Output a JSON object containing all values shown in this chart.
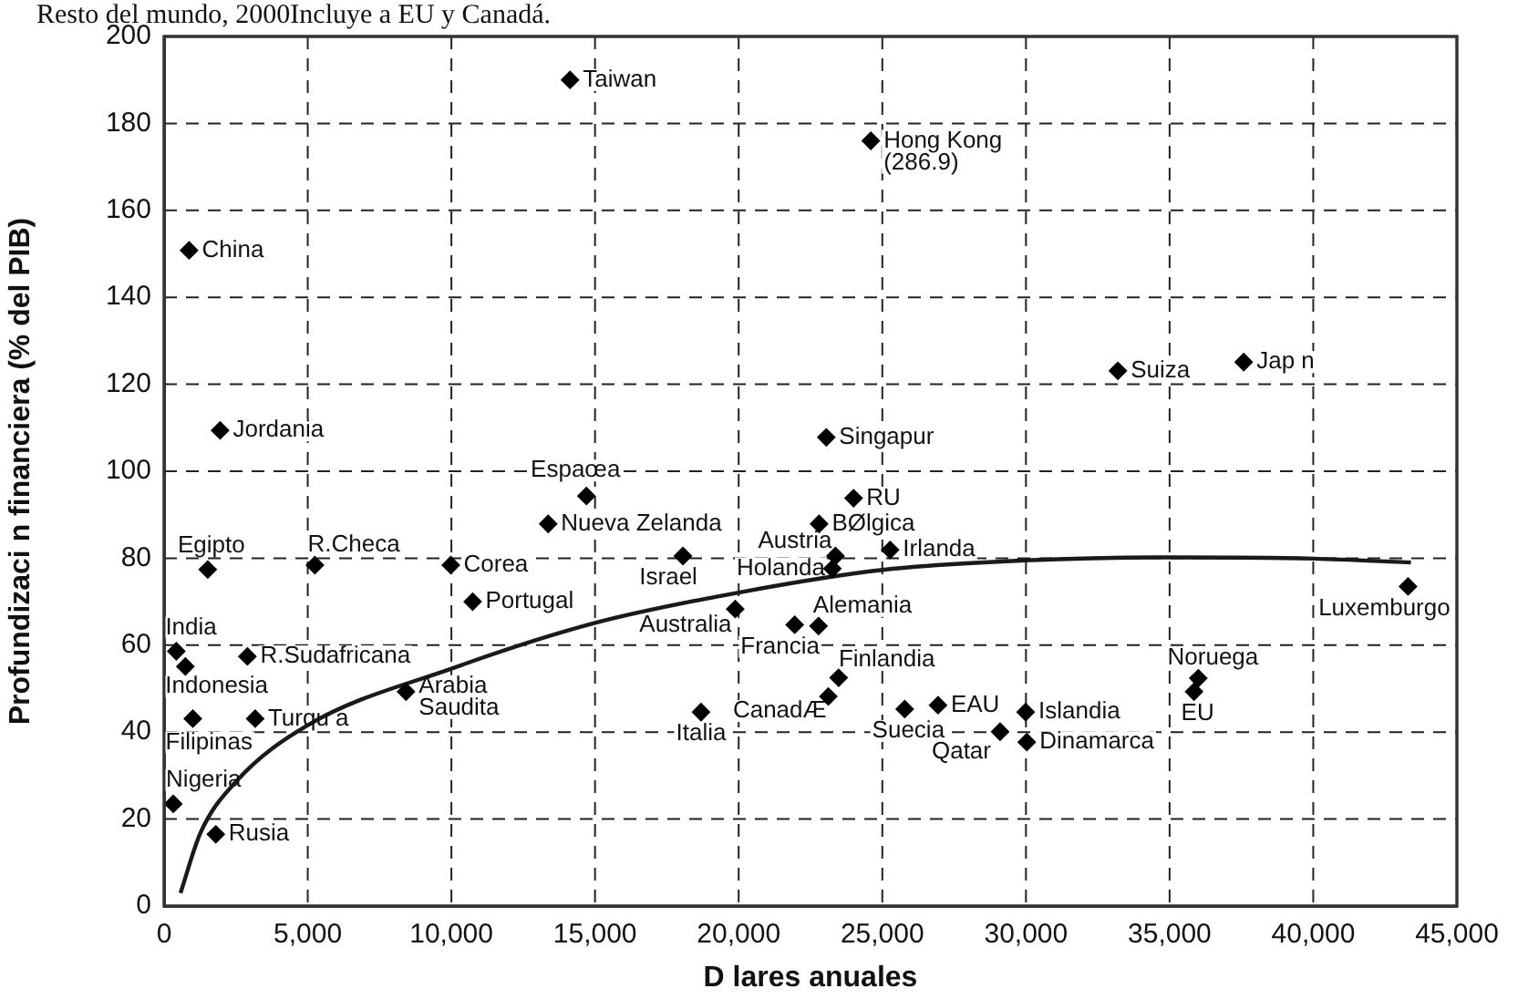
{
  "chart_data": {
    "type": "scatter",
    "title": "Resto del mundo, 2000Incluye a EU y Canadá.",
    "xlabel": "D lares anuales",
    "ylabel": "Profundizaci n financiera (% del PIB)",
    "xlim": [
      0,
      45000
    ],
    "xticks": [
      {
        "value": 0,
        "label": "0"
      },
      {
        "value": 5000,
        "label": "5,000"
      },
      {
        "value": 10000,
        "label": "10,000"
      },
      {
        "value": 15000,
        "label": "15,000"
      },
      {
        "value": 20000,
        "label": "20,000"
      },
      {
        "value": 25000,
        "label": "25,000"
      },
      {
        "value": 30000,
        "label": "30,000"
      },
      {
        "value": 35000,
        "label": "35,000"
      },
      {
        "value": 40000,
        "label": "40,000"
      },
      {
        "value": 45000,
        "label": "45,000"
      }
    ],
    "ylim": [
      0,
      200
    ],
    "yticks": [
      0,
      20,
      40,
      60,
      80,
      100,
      120,
      140,
      160,
      180,
      200
    ],
    "grid": true,
    "legend": false,
    "series": [
      {
        "color": "#000000",
        "marker": "diamond",
        "x": [
          870,
          14130,
          24600,
          1950,
          14700,
          13370,
          23050,
          33200,
          37580,
          24000,
          22800,
          23370,
          23260,
          25270,
          18060,
          1520,
          5250,
          9980,
          10740,
          19880,
          21950,
          22780,
          425,
          740,
          2900,
          8420,
          1000,
          3170,
          320,
          1800,
          18690,
          23480,
          23120,
          25780,
          26940,
          29990,
          29100,
          30030,
          36000,
          35850,
          43300
        ],
        "values": [
          150.8,
          190,
          176,
          109.4,
          94.3,
          87.9,
          107.8,
          123.1,
          125.1,
          93.8,
          87.9,
          80.5,
          77.6,
          81.9,
          80.5,
          77.4,
          78.4,
          78.4,
          70,
          68.3,
          64.7,
          64.4,
          58.6,
          55.1,
          57.4,
          49.3,
          43.1,
          43.1,
          23.5,
          16.5,
          44.6,
          52.5,
          48.2,
          45.3,
          46.2,
          44.6,
          40.1,
          37.7,
          52.4,
          49.3,
          73.5
        ]
      },
      {
        "type": "line",
        "color": "#1a1a1a",
        "marker": "none",
        "line_style": "solid",
        "x": [
          570,
          1270,
          2500,
          5000,
          10000,
          15000,
          20000,
          25000,
          30000,
          35000,
          40000,
          43400
        ],
        "values": [
          3,
          16.9,
          28.6,
          41.6,
          54.6,
          65.1,
          72.1,
          77.3,
          79.5,
          80.2,
          79.9,
          79
        ]
      }
    ],
    "annotations": [
      {
        "text": "China",
        "x": 870,
        "y": 150.8
      },
      {
        "text": "Taiwan",
        "x": 14130,
        "y": 190
      },
      {
        "text": "Hong Kong\n(286.9)",
        "x": 24600,
        "y": 176
      },
      {
        "text": "Jordania",
        "x": 1950,
        "y": 109.4
      },
      {
        "text": "Espaœa",
        "x": 14700,
        "y": 94.3
      },
      {
        "text": "Nueva Zelanda",
        "x": 13370,
        "y": 87.9
      },
      {
        "text": "Singapur",
        "x": 23050,
        "y": 107.8
      },
      {
        "text": "Suiza",
        "x": 33200,
        "y": 123.1
      },
      {
        "text": "Jap n",
        "x": 37580,
        "y": 125.1
      },
      {
        "text": "RU",
        "x": 24000,
        "y": 93.8
      },
      {
        "text": "BØlgica",
        "x": 22800,
        "y": 87.9
      },
      {
        "text": "Austria",
        "x": 23370,
        "y": 80.5
      },
      {
        "text": "Holanda",
        "x": 23260,
        "y": 77.6
      },
      {
        "text": "Irlanda",
        "x": 25270,
        "y": 81.9
      },
      {
        "text": "Israel",
        "x": 18060,
        "y": 80.5
      },
      {
        "text": "Egipto",
        "x": 1520,
        "y": 77.4
      },
      {
        "text": "R.Checa",
        "x": 5250,
        "y": 78.4
      },
      {
        "text": "Corea",
        "x": 9980,
        "y": 78.4
      },
      {
        "text": "Portugal",
        "x": 10740,
        "y": 70
      },
      {
        "text": "Australia",
        "x": 19880,
        "y": 68.3
      },
      {
        "text": "Francia",
        "x": 21950,
        "y": 64.7
      },
      {
        "text": "Alemania",
        "x": 22780,
        "y": 64.4
      },
      {
        "text": "India",
        "x": 425,
        "y": 58.6
      },
      {
        "text": "Indonesia",
        "x": 740,
        "y": 55.1
      },
      {
        "text": "R.Sudafricana",
        "x": 2900,
        "y": 57.4
      },
      {
        "text": "Arabia\nSaudita",
        "x": 8420,
        "y": 49.3
      },
      {
        "text": "Filipinas",
        "x": 1000,
        "y": 43.1
      },
      {
        "text": "Turqu a",
        "x": 3170,
        "y": 43.1
      },
      {
        "text": "Nigeria",
        "x": 320,
        "y": 23.5
      },
      {
        "text": "Rusia",
        "x": 1800,
        "y": 16.5
      },
      {
        "text": "Italia",
        "x": 18690,
        "y": 44.6
      },
      {
        "text": "Finlandia",
        "x": 23480,
        "y": 52.5
      },
      {
        "text": "CanadÆ",
        "x": 23120,
        "y": 48.2
      },
      {
        "text": "Suecia",
        "x": 25780,
        "y": 45.3
      },
      {
        "text": "EAU",
        "x": 26940,
        "y": 46.2
      },
      {
        "text": "Islandia",
        "x": 29990,
        "y": 44.6
      },
      {
        "text": "Qatar",
        "x": 29100,
        "y": 40.1
      },
      {
        "text": "Dinamarca",
        "x": 30030,
        "y": 37.7
      },
      {
        "text": "Noruega",
        "x": 36000,
        "y": 52.4
      },
      {
        "text": "EU",
        "x": 35850,
        "y": 49.3
      },
      {
        "text": "Luxemburgo",
        "x": 43300,
        "y": 73.5
      }
    ]
  }
}
